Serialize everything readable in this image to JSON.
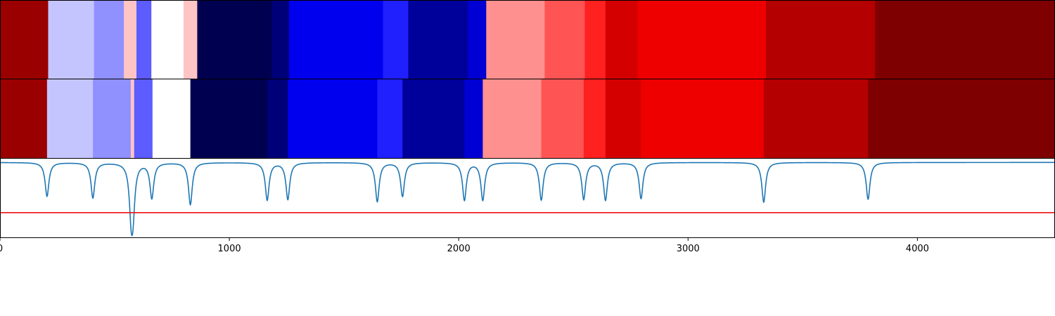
{
  "chart_data": {
    "type": "heatmap",
    "title": "",
    "xlabel": "",
    "ylabel": "",
    "xlim": [
      0,
      4600
    ],
    "x_ticks": [
      0,
      1000,
      2000,
      3000,
      4000
    ],
    "x_tick_labels": [
      "0",
      "1000",
      "2000",
      "3000",
      "4000"
    ],
    "grid": false,
    "legend": "none",
    "rows": [
      {
        "segments": [
          {
            "start": 0,
            "end": 210,
            "color": "#9a0000"
          },
          {
            "start": 210,
            "end": 410,
            "color": "#c4c4ff"
          },
          {
            "start": 410,
            "end": 540,
            "color": "#9090ff"
          },
          {
            "start": 540,
            "end": 595,
            "color": "#ffc4c4"
          },
          {
            "start": 595,
            "end": 660,
            "color": "#5c5cff"
          },
          {
            "start": 660,
            "end": 800,
            "color": "#ffffff"
          },
          {
            "start": 800,
            "end": 860,
            "color": "#ffc4c4"
          },
          {
            "start": 860,
            "end": 1185,
            "color": "#000050"
          },
          {
            "start": 1185,
            "end": 1260,
            "color": "#000078"
          },
          {
            "start": 1260,
            "end": 1670,
            "color": "#0000ee"
          },
          {
            "start": 1670,
            "end": 1780,
            "color": "#2020ff"
          },
          {
            "start": 1780,
            "end": 2040,
            "color": "#00009a"
          },
          {
            "start": 2040,
            "end": 2120,
            "color": "#0000d4"
          },
          {
            "start": 2120,
            "end": 2375,
            "color": "#ff9090"
          },
          {
            "start": 2375,
            "end": 2550,
            "color": "#ff5454"
          },
          {
            "start": 2550,
            "end": 2640,
            "color": "#ff2020"
          },
          {
            "start": 2640,
            "end": 2780,
            "color": "#d40000"
          },
          {
            "start": 2780,
            "end": 3340,
            "color": "#ee0000"
          },
          {
            "start": 3340,
            "end": 3815,
            "color": "#b40000"
          },
          {
            "start": 3815,
            "end": 4600,
            "color": "#7e0000"
          }
        ]
      },
      {
        "segments": [
          {
            "start": 0,
            "end": 205,
            "color": "#9a0000"
          },
          {
            "start": 205,
            "end": 405,
            "color": "#c4c4ff"
          },
          {
            "start": 405,
            "end": 570,
            "color": "#9090ff"
          },
          {
            "start": 570,
            "end": 585,
            "color": "#ffc4c4"
          },
          {
            "start": 585,
            "end": 665,
            "color": "#5c5cff"
          },
          {
            "start": 665,
            "end": 830,
            "color": "#ffffff"
          },
          {
            "start": 830,
            "end": 1165,
            "color": "#000050"
          },
          {
            "start": 1165,
            "end": 1255,
            "color": "#000078"
          },
          {
            "start": 1255,
            "end": 1645,
            "color": "#0000ee"
          },
          {
            "start": 1645,
            "end": 1755,
            "color": "#2020ff"
          },
          {
            "start": 1755,
            "end": 2025,
            "color": "#00009a"
          },
          {
            "start": 2025,
            "end": 2105,
            "color": "#0000d4"
          },
          {
            "start": 2105,
            "end": 2360,
            "color": "#ff9090"
          },
          {
            "start": 2360,
            "end": 2545,
            "color": "#ff5454"
          },
          {
            "start": 2545,
            "end": 2640,
            "color": "#ff2020"
          },
          {
            "start": 2640,
            "end": 2795,
            "color": "#d40000"
          },
          {
            "start": 2795,
            "end": 3330,
            "color": "#ee0000"
          },
          {
            "start": 3330,
            "end": 3785,
            "color": "#b40000"
          },
          {
            "start": 3785,
            "end": 4600,
            "color": "#7e0000"
          }
        ]
      }
    ],
    "signal": {
      "color": "#1f77b4",
      "baseline": 1.0,
      "ylim": [
        0,
        1.05
      ],
      "dips": [
        {
          "x": 205,
          "depth": 0.45
        },
        {
          "x": 405,
          "depth": 0.47
        },
        {
          "x": 572,
          "depth": 0.6
        },
        {
          "x": 580,
          "depth": 0.52
        },
        {
          "x": 662,
          "depth": 0.47
        },
        {
          "x": 830,
          "depth": 0.56
        },
        {
          "x": 1165,
          "depth": 0.5
        },
        {
          "x": 1255,
          "depth": 0.49
        },
        {
          "x": 1645,
          "depth": 0.52
        },
        {
          "x": 1755,
          "depth": 0.45
        },
        {
          "x": 2025,
          "depth": 0.5
        },
        {
          "x": 2105,
          "depth": 0.5
        },
        {
          "x": 2360,
          "depth": 0.5
        },
        {
          "x": 2545,
          "depth": 0.49
        },
        {
          "x": 2640,
          "depth": 0.5
        },
        {
          "x": 2795,
          "depth": 0.48
        },
        {
          "x": 3330,
          "depth": 0.53
        },
        {
          "x": 3785,
          "depth": 0.49
        }
      ],
      "threshold": {
        "y": 0.33,
        "color": "#ee1111"
      }
    }
  }
}
